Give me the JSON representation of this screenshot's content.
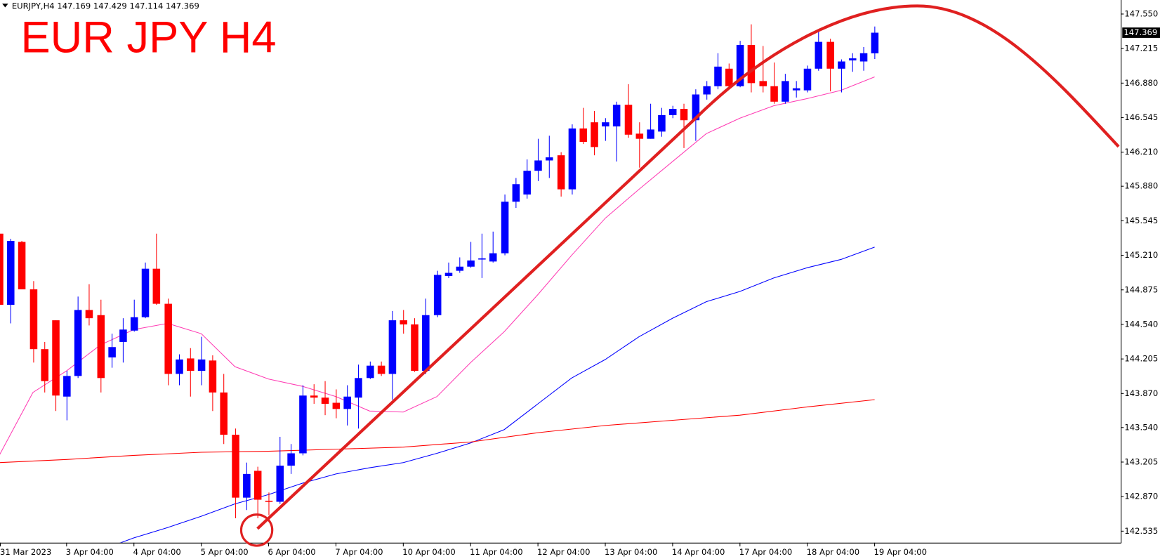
{
  "chart_data": {
    "type": "candlestick",
    "title": "EUR JPY H4",
    "symbol": "EURJPY,H4",
    "up_color": "#0000ff",
    "down_color": "#ff0000",
    "open": [
      145.42,
      144.73,
      145.34,
      144.88,
      144.3,
      144.58,
      143.84,
      144.04,
      144.68,
      144.63,
      144.22,
      144.37,
      144.48,
      144.61,
      145.08,
      144.74,
      144.06,
      144.21,
      144.09,
      144.19,
      143.88,
      143.47,
      142.86,
      143.12,
      142.83,
      142.82,
      143.17,
      143.29,
      143.85,
      143.83,
      143.78,
      143.72,
      143.83,
      144.02,
      144.14,
      144.06,
      144.58,
      144.54,
      144.09,
      144.63,
      145.01,
      145.06,
      145.1,
      145.17,
      145.15,
      145.23,
      145.73,
      145.8,
      146.03,
      146.13,
      146.18,
      145.85,
      146.44,
      146.5,
      146.46,
      146.46,
      146.67,
      146.39,
      146.34,
      146.41,
      146.57,
      146.63,
      146.52,
      146.77,
      146.85,
      147.02,
      146.85,
      147.25,
      146.9,
      146.85,
      146.7,
      146.81,
      146.81,
      147.02,
      147.28,
      147.02,
      147.1,
      147.09,
      147.169
    ],
    "high": [
      145.44,
      145.37,
      145.35,
      144.96,
      144.37,
      144.58,
      144.09,
      144.81,
      144.93,
      144.78,
      144.45,
      144.6,
      144.78,
      145.14,
      145.42,
      144.79,
      144.25,
      144.31,
      144.42,
      144.24,
      144.06,
      143.53,
      143.2,
      143.16,
      142.91,
      143.45,
      143.38,
      143.95,
      143.96,
      143.99,
      143.91,
      143.95,
      144.15,
      144.18,
      144.18,
      144.67,
      144.68,
      144.6,
      144.79,
      145.06,
      145.14,
      145.19,
      145.34,
      145.42,
      145.44,
      145.8,
      145.96,
      146.14,
      146.34,
      146.37,
      146.21,
      146.48,
      146.64,
      146.61,
      146.54,
      146.7,
      146.87,
      146.5,
      146.68,
      146.64,
      146.66,
      146.68,
      146.82,
      146.9,
      147.17,
      147.07,
      147.29,
      147.45,
      147.24,
      147.08,
      146.97,
      146.9,
      147.05,
      147.38,
      147.31,
      147.11,
      147.17,
      147.23,
      147.429
    ],
    "low": [
      144.73,
      144.55,
      144.88,
      144.17,
      143.88,
      143.7,
      143.61,
      144.02,
      144.53,
      143.88,
      144.12,
      144.17,
      144.47,
      144.6,
      144.73,
      143.95,
      143.95,
      143.84,
      143.95,
      143.7,
      143.38,
      142.66,
      142.74,
      142.66,
      142.69,
      142.8,
      143.09,
      143.27,
      143.77,
      143.66,
      143.63,
      143.56,
      143.53,
      144.01,
      144.04,
      143.81,
      144.45,
      144.08,
      144.06,
      144.61,
      144.99,
      145.04,
      145.09,
      144.99,
      145.14,
      145.21,
      145.67,
      145.76,
      145.93,
      145.96,
      145.78,
      145.8,
      146.29,
      146.18,
      146.32,
      146.12,
      146.35,
      146.06,
      146.34,
      146.36,
      146.54,
      146.25,
      146.32,
      146.72,
      146.82,
      146.82,
      146.84,
      146.79,
      146.79,
      146.68,
      146.68,
      146.74,
      146.79,
      147.0,
      146.8,
      146.79,
      146.99,
      147.0,
      147.114
    ],
    "close": [
      144.73,
      145.35,
      144.88,
      144.3,
      143.99,
      143.85,
      144.04,
      144.68,
      144.6,
      144.02,
      144.32,
      144.49,
      144.61,
      145.08,
      144.74,
      144.06,
      144.2,
      144.09,
      144.2,
      143.88,
      143.47,
      142.86,
      143.09,
      142.84,
      142.82,
      143.17,
      143.29,
      143.85,
      143.83,
      143.77,
      143.72,
      143.84,
      144.02,
      144.14,
      144.06,
      144.58,
      144.54,
      144.09,
      144.63,
      145.02,
      145.04,
      145.1,
      145.16,
      145.18,
      145.23,
      145.73,
      145.9,
      146.03,
      146.13,
      146.16,
      145.85,
      146.44,
      146.31,
      146.26,
      146.5,
      146.67,
      146.38,
      146.34,
      146.43,
      146.57,
      146.63,
      146.52,
      146.77,
      146.85,
      147.04,
      146.85,
      147.25,
      146.88,
      146.85,
      146.7,
      146.9,
      146.83,
      147.02,
      147.28,
      147.02,
      147.09,
      147.12,
      147.17,
      147.369
    ],
    "series": [
      {
        "color": "#ff3cb4",
        "x": [
          0,
          3,
          6,
          9,
          12,
          15,
          18,
          21,
          24,
          27,
          30,
          33,
          36,
          39,
          42,
          45,
          48,
          51,
          54,
          57,
          60,
          63,
          66,
          69,
          72,
          75,
          78
        ],
        "values": [
          143.27,
          143.88,
          144.09,
          144.34,
          144.49,
          144.55,
          144.45,
          144.13,
          144.01,
          143.94,
          143.84,
          143.7,
          143.69,
          143.84,
          144.17,
          144.47,
          144.83,
          145.21,
          145.57,
          145.85,
          146.12,
          146.39,
          146.54,
          146.66,
          146.73,
          146.81,
          146.94
        ]
      },
      {
        "color": "#0000ff",
        "x": [
          10,
          12,
          15,
          18,
          21,
          24,
          27,
          30,
          33,
          36,
          39,
          42,
          45,
          48,
          51,
          54,
          57,
          60,
          63,
          66,
          69,
          72,
          75,
          78
        ],
        "values": [
          142.39,
          142.47,
          142.57,
          142.68,
          142.8,
          142.89,
          143.0,
          143.09,
          143.15,
          143.2,
          143.29,
          143.39,
          143.52,
          143.77,
          144.02,
          144.2,
          144.42,
          144.6,
          144.76,
          144.86,
          144.99,
          145.09,
          145.17,
          145.29
        ]
      },
      {
        "color": "#ff0000",
        "x": [
          0,
          6,
          12,
          18,
          24,
          30,
          36,
          42,
          48,
          54,
          60,
          66,
          72,
          78
        ],
        "values": [
          143.2,
          143.23,
          143.27,
          143.3,
          143.31,
          143.33,
          143.35,
          143.4,
          143.49,
          143.56,
          143.61,
          143.66,
          143.74,
          143.81
        ]
      }
    ],
    "xlim": [
      0,
      100
    ],
    "xticks": [
      {
        "value": 0,
        "label": "31 Mar 2023"
      },
      {
        "value": 6,
        "label": "3 Apr 04:00"
      },
      {
        "value": 12,
        "label": "4 Apr 04:00"
      },
      {
        "value": 18,
        "label": "5 Apr 04:00"
      },
      {
        "value": 24,
        "label": "6 Apr 04:00"
      },
      {
        "value": 30,
        "label": "7 Apr 04:00"
      },
      {
        "value": 36,
        "label": "10 Apr 04:00"
      },
      {
        "value": 42,
        "label": "11 Apr 04:00"
      },
      {
        "value": 48,
        "label": "12 Apr 04:00"
      },
      {
        "value": 54,
        "label": "13 Apr 04:00"
      },
      {
        "value": 60,
        "label": "14 Apr 04:00"
      },
      {
        "value": 66,
        "label": "17 Apr 04:00"
      },
      {
        "value": 72,
        "label": "18 Apr 04:00"
      },
      {
        "value": 78,
        "label": "19 Apr 04:00"
      }
    ],
    "ylim": [
      142.423,
      147.686
    ],
    "yticks": [
      {
        "value": 147.55,
        "label": "147.550"
      },
      147.215,
      {
        "value": 146.88,
        "label": "146.880"
      },
      146.545,
      {
        "value": 146.21,
        "label": "146.210"
      },
      {
        "value": 145.88,
        "label": "145.880"
      },
      145.545,
      {
        "value": 145.21,
        "label": "145.210"
      },
      144.875,
      {
        "value": 144.54,
        "label": "144.540"
      },
      144.205,
      {
        "value": 143.87,
        "label": "143.870"
      },
      {
        "value": 143.54,
        "label": "143.540"
      },
      143.205,
      {
        "value": 142.87,
        "label": "142.870"
      },
      142.535
    ]
  }
}
